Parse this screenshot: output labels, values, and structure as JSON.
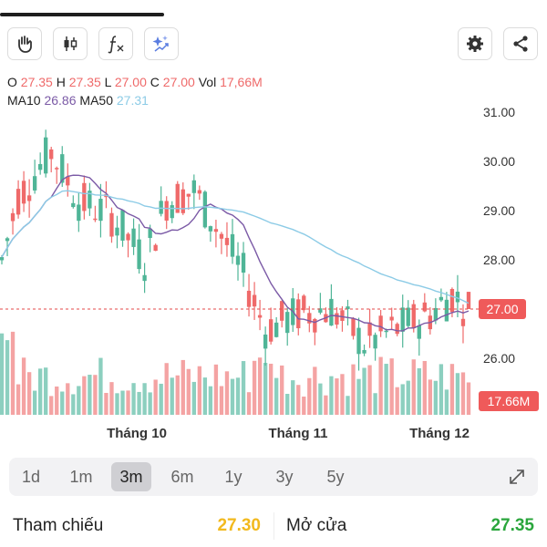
{
  "toolbar": {
    "left_icons": [
      "hand-icon",
      "candlestick-icon",
      "function-icon",
      "sparkle-icon"
    ],
    "right_icons": [
      "gear-icon",
      "share-icon"
    ]
  },
  "ohlc": {
    "o_label": "O",
    "o_value": "27.35",
    "h_label": "H",
    "h_value": "27.35",
    "l_label": "L",
    "l_value": "27.00",
    "c_label": "C",
    "c_value": "27.00",
    "vol_label": "Vol",
    "vol_value": "17,66M"
  },
  "ma": {
    "ma10_label": "MA10",
    "ma10_value": "26.86",
    "ma50_label": "MA50",
    "ma50_value": "27.31"
  },
  "chart_data": {
    "type": "candlestick",
    "y_ticks": [
      "31.00",
      "30.00",
      "29.00",
      "28.00",
      "27.00",
      "26.00"
    ],
    "ylim": [
      25.6,
      31.3
    ],
    "x_labels": [
      "Tháng 10",
      "Tháng 11",
      "Tháng 12"
    ],
    "current_price_label": "27.00",
    "volume_label": "17.66M",
    "colors": {
      "up": "#4fb597",
      "down": "#ef6a6a",
      "ma10": "#7b5aa6",
      "ma50": "#8ccbe6",
      "up_vol": "#8ccfbf",
      "down_vol": "#f4a3a3"
    }
  },
  "ranges": {
    "items": [
      "1d",
      "1m",
      "3m",
      "6m",
      "1y",
      "3y",
      "5y"
    ],
    "active": "3m"
  },
  "summary": {
    "ref_label": "Tham chiếu",
    "ref_value": "27.30",
    "ref_color": "#f2b91e",
    "open_label": "Mở cửa",
    "open_value": "27.35",
    "open_color": "#2aa63c"
  }
}
